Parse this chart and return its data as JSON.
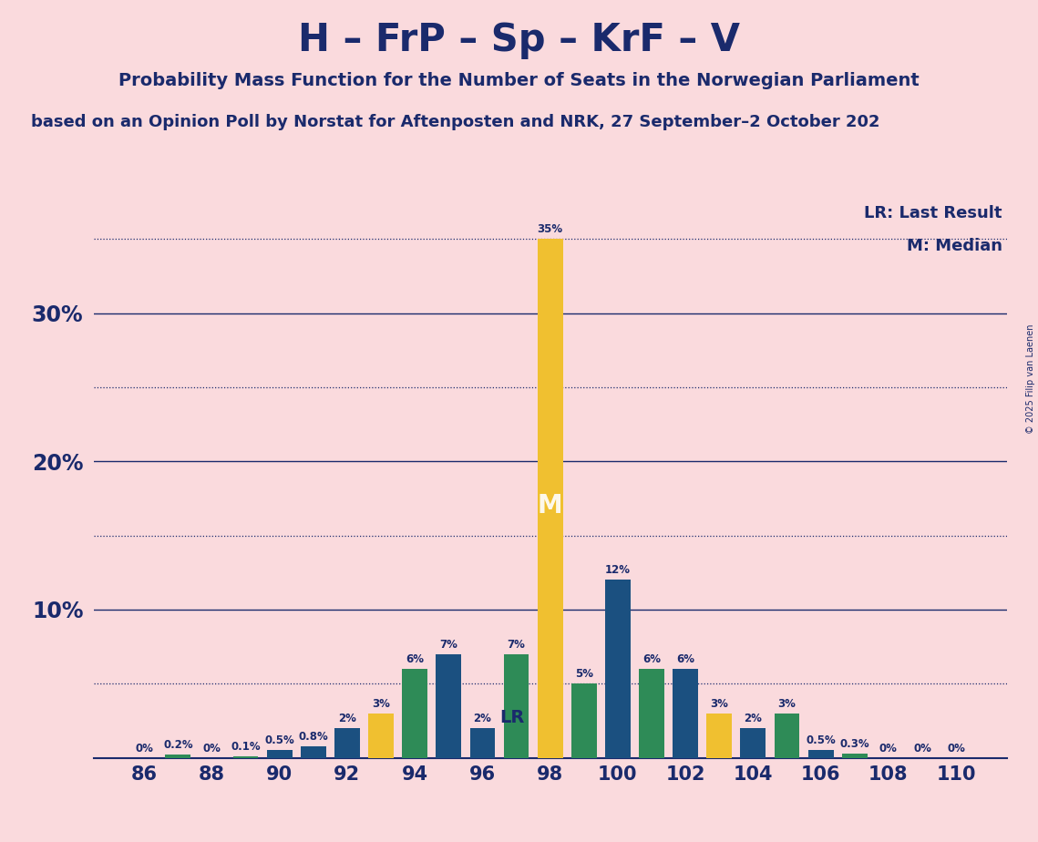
{
  "title": "H – FrP – Sp – KrF – V",
  "subtitle": "Probability Mass Function for the Number of Seats in the Norwegian Parliament",
  "subtitle2": "based on an Opinion Poll by Norstat for Aftenposten and NRK, 27 September–2 October 202",
  "copyright": "© 2025 Filip van Laenen",
  "bg_color": "#FADADD",
  "title_color": "#1a2a6c",
  "seats": [
    86,
    87,
    88,
    89,
    90,
    91,
    92,
    93,
    94,
    95,
    96,
    97,
    98,
    99,
    100,
    101,
    102,
    103,
    104,
    105,
    106,
    107,
    108,
    109,
    110
  ],
  "values": [
    0.0,
    0.2,
    0.0,
    0.1,
    0.5,
    0.8,
    2.0,
    3.0,
    6.0,
    7.0,
    2.0,
    7.0,
    35.0,
    5.0,
    12.0,
    6.0,
    6.0,
    3.0,
    2.0,
    3.0,
    0.5,
    0.3,
    0.0,
    0.0,
    0.0
  ],
  "colors": [
    "#1b5080",
    "#2e8b57",
    "#1b5080",
    "#2e8b57",
    "#1b5080",
    "#1b5080",
    "#1b5080",
    "#f0c030",
    "#2e8b57",
    "#1b5080",
    "#1b5080",
    "#2e8b57",
    "#f0c030",
    "#2e8b57",
    "#1b5080",
    "#2e8b57",
    "#1b5080",
    "#f0c030",
    "#1b5080",
    "#2e8b57",
    "#1b5080",
    "#2e8b57",
    "#1b5080",
    "#2e8b57",
    "#2e8b57"
  ],
  "LR_seat": 96,
  "M_seat": 98,
  "legend_LR": "LR: Last Result",
  "legend_M": "M: Median",
  "shown_xticks": [
    86,
    88,
    90,
    92,
    94,
    96,
    98,
    100,
    102,
    104,
    106,
    108,
    110
  ],
  "dotted_lines_only": [
    5.0,
    15.0,
    25.0,
    35.0
  ],
  "solid_lines": [
    10.0,
    20.0,
    30.0
  ],
  "ylim_max": 37.5,
  "bar_width": 0.75
}
